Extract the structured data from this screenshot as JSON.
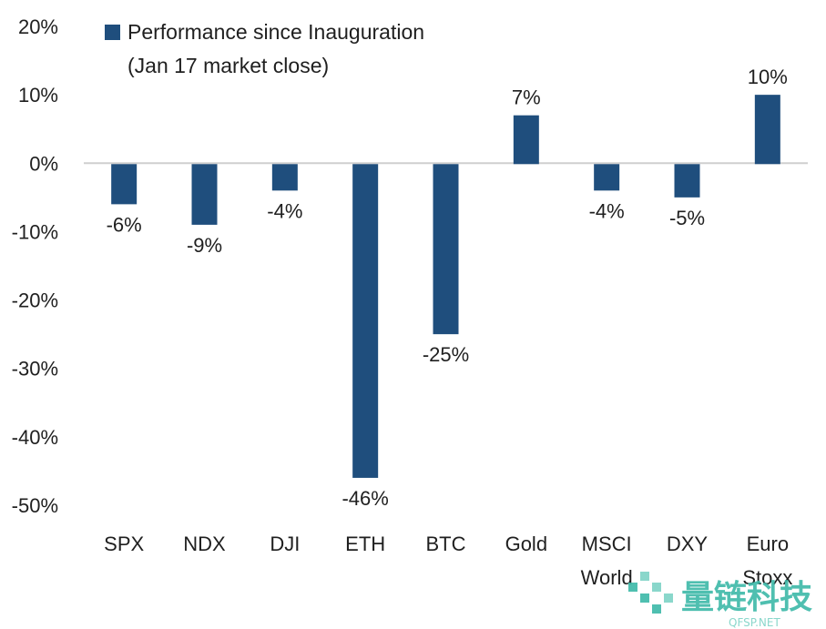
{
  "chart_data": {
    "type": "bar",
    "categories": [
      "SPX",
      "NDX",
      "DJI",
      "ETH",
      "BTC",
      "Gold",
      "MSCI World",
      "DXY",
      "Euro Stoxx"
    ],
    "category_lines": [
      [
        "SPX"
      ],
      [
        "NDX"
      ],
      [
        "DJI"
      ],
      [
        "ETH"
      ],
      [
        "BTC"
      ],
      [
        "Gold"
      ],
      [
        "MSCI",
        "World"
      ],
      [
        "DXY"
      ],
      [
        "Euro",
        "Stoxx"
      ]
    ],
    "series": [
      {
        "name": "Performance since Inauguration (Jan 17 market close)",
        "legend_lines": [
          "Performance since Inauguration",
          "(Jan 17 market close)"
        ],
        "values": [
          -6,
          -9,
          -4,
          -46,
          -25,
          7,
          -4,
          -5,
          10
        ],
        "data_labels": [
          "-6%",
          "-9%",
          "-4%",
          "-46%",
          "-25%",
          "7%",
          "-4%",
          "-5%",
          "10%"
        ],
        "color": "#1f4e7d"
      }
    ],
    "ylim": [
      -50,
      20
    ],
    "yticks": [
      20,
      10,
      0,
      -10,
      -20,
      -30,
      -40,
      -50
    ],
    "ytick_labels": [
      "20%",
      "10%",
      "0%",
      "-10%",
      "-20%",
      "-30%",
      "-40%",
      "-50%"
    ],
    "xlabel": "",
    "ylabel": "",
    "grid": false,
    "legend_position": "top-left"
  },
  "watermark": {
    "text": "量链科技",
    "subtext": "QFSP.NET",
    "colors": {
      "primary": "#3cb9a8",
      "secondary": "#7ed3c6"
    }
  },
  "colors": {
    "bar": "#1f4e7d",
    "axis": "#cfcfcf",
    "text": "#1f1f1f"
  }
}
